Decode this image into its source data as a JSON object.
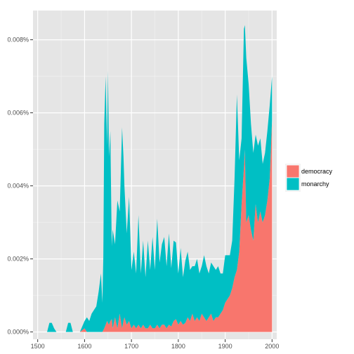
{
  "chart_data": {
    "type": "area",
    "stacked": true,
    "title": "",
    "xlabel": "",
    "ylabel": "",
    "xlim": [
      1490,
      2010
    ],
    "ylim": [
      -0.0002,
      0.0088
    ],
    "x_ticks": [
      1500,
      1600,
      1700,
      1800,
      1900,
      2000
    ],
    "x_tick_labels": [
      "1500",
      "1600",
      "1700",
      "1800",
      "1900",
      "2000"
    ],
    "y_ticks": [
      0,
      0.002,
      0.004,
      0.006,
      0.008
    ],
    "y_tick_labels": [
      "0.000%",
      "0.002%",
      "0.004%",
      "0.006%",
      "0.008%"
    ],
    "grid": true,
    "legend_position": "right",
    "x": [
      1500,
      1510,
      1520,
      1525,
      1530,
      1535,
      1540,
      1550,
      1560,
      1565,
      1570,
      1575,
      1580,
      1590,
      1600,
      1605,
      1610,
      1615,
      1620,
      1625,
      1630,
      1635,
      1638,
      1640,
      1642,
      1645,
      1648,
      1650,
      1652,
      1655,
      1658,
      1660,
      1665,
      1670,
      1675,
      1680,
      1683,
      1685,
      1690,
      1695,
      1700,
      1705,
      1710,
      1715,
      1720,
      1725,
      1730,
      1735,
      1740,
      1745,
      1750,
      1755,
      1760,
      1765,
      1770,
      1775,
      1780,
      1785,
      1790,
      1795,
      1800,
      1805,
      1810,
      1815,
      1820,
      1825,
      1830,
      1835,
      1840,
      1845,
      1850,
      1855,
      1860,
      1865,
      1870,
      1875,
      1880,
      1885,
      1890,
      1895,
      1900,
      1905,
      1910,
      1915,
      1920,
      1925,
      1930,
      1935,
      1940,
      1942,
      1945,
      1950,
      1955,
      1960,
      1965,
      1970,
      1975,
      1980,
      1985,
      1990,
      1995,
      2000
    ],
    "series": [
      {
        "name": "democracy",
        "color": "#f8766d",
        "values": [
          0,
          0,
          0,
          0,
          0,
          0,
          0,
          0,
          0,
          0,
          0,
          0,
          0,
          0,
          0.0001,
          0,
          0,
          0,
          0,
          0,
          0,
          0,
          0,
          5e-05,
          0.0001,
          0.0002,
          0.0003,
          0.00025,
          0.0002,
          0.0003,
          0.00035,
          0.0001,
          0.0004,
          0.0001,
          0.0005,
          0.0001,
          0.0003,
          0.0004,
          0.0002,
          0.0003,
          0.0001,
          0.0002,
          0.0001,
          0.0002,
          0.0001,
          0.0002,
          0.0001,
          0.0001,
          0.0002,
          0.0001,
          0.0001,
          0.0002,
          0.0001,
          0.0002,
          0.0002,
          0.0001,
          0.0002,
          0.00015,
          0.0003,
          0.00035,
          0.0002,
          0.0003,
          0.0002,
          0.00025,
          0.0004,
          0.0003,
          0.0005,
          0.0003,
          0.0004,
          0.0003,
          0.0005,
          0.0004,
          0.0003,
          0.0004,
          0.0005,
          0.0003,
          0.0004,
          0.0004,
          0.0005,
          0.0006,
          0.0008,
          0.0009,
          0.001,
          0.0012,
          0.0015,
          0.0017,
          0.0022,
          0.0035,
          0.0045,
          0.005,
          0.003,
          0.0032,
          0.0028,
          0.0025,
          0.0035,
          0.003,
          0.0033,
          0.003,
          0.0032,
          0.0036,
          0.0042,
          0.0058
        ]
      },
      {
        "name": "monarchy",
        "color": "#00bfc4",
        "values": [
          0,
          0,
          0,
          0.00025,
          0.00025,
          0.0001,
          0,
          0,
          0,
          0.00025,
          0.00025,
          0,
          0,
          0,
          0.0002,
          0.0004,
          0.0003,
          0.0005,
          0.0006,
          0.0007,
          0.0011,
          0.0016,
          0.0008,
          0.002,
          0.0056,
          0.0068,
          0.0048,
          0.0069,
          0.0046,
          0.0052,
          0.002,
          0.0027,
          0.002,
          0.0035,
          0.0028,
          0.0055,
          0.0045,
          0.0036,
          0.0025,
          0.0034,
          0.0016,
          0.002,
          0.0015,
          0.003,
          0.0015,
          0.0023,
          0.0014,
          0.0024,
          0.0015,
          0.0025,
          0.0016,
          0.0029,
          0.0018,
          0.0022,
          0.0024,
          0.0017,
          0.0025,
          0.0016,
          0.0022,
          0.0021,
          0.0014,
          0.002,
          0.0013,
          0.0017,
          0.0018,
          0.0014,
          0.0013,
          0.0015,
          0.0016,
          0.0013,
          0.0013,
          0.0017,
          0.0015,
          0.0012,
          0.0014,
          0.0015,
          0.0013,
          0.0014,
          0.0011,
          0.001,
          0.0013,
          0.0012,
          0.0011,
          0.0013,
          0.0027,
          0.0048,
          0.0025,
          0.0018,
          0.0038,
          0.0034,
          0.0045,
          0.0036,
          0.0029,
          0.0024,
          0.0019,
          0.0021,
          0.002,
          0.0016,
          0.0017,
          0.0019,
          0.002,
          0.0012
        ]
      }
    ]
  }
}
